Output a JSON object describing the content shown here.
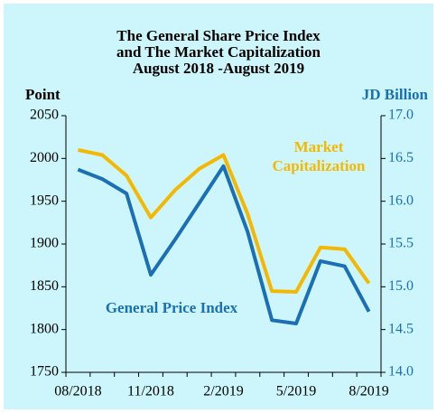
{
  "chart_data": {
    "type": "line",
    "title": [
      "The General Share Price Index",
      "and  The Market Capitalization",
      "August 2018 -August 2019"
    ],
    "y_axis_label": "Point",
    "y2_axis_label": "JD Billion",
    "categories": [
      "08/2018",
      null,
      null,
      "11/2018",
      null,
      null,
      "2/2019",
      null,
      null,
      "5/2019",
      null,
      null,
      "8/2019"
    ],
    "ylim": [
      1750,
      2050
    ],
    "yticks": [
      1750,
      1800,
      1850,
      1900,
      1950,
      2000,
      2050
    ],
    "y2lim": [
      14,
      17
    ],
    "y2ticks": [
      {
        "value": 14,
        "label": "14.0"
      },
      {
        "value": 14.5,
        "label": "14.5"
      },
      {
        "value": 15,
        "label": "15.0"
      },
      {
        "value": 15.5,
        "label": "15.5"
      },
      {
        "value": 16,
        "label": "16.0"
      },
      {
        "value": 16.5,
        "label": "16.5"
      },
      {
        "value": 17,
        "label": "17.0"
      }
    ],
    "grid": false,
    "series": [
      {
        "name": "General  Price Index",
        "color": "#1a6fb5",
        "values": [
          1987,
          1976,
          1959,
          1864,
          1905,
          1948,
          1991,
          1914,
          1811,
          1807,
          1880,
          1874,
          1821
        ]
      },
      {
        "name": "Market Capitalization",
        "color": "#f5b800",
        "axis": "y2",
        "values": [
          16.6,
          16.54,
          16.3,
          15.81,
          16.13,
          16.38,
          16.54,
          15.85,
          14.95,
          14.94,
          15.46,
          15.44,
          15.04
        ]
      }
    ]
  }
}
